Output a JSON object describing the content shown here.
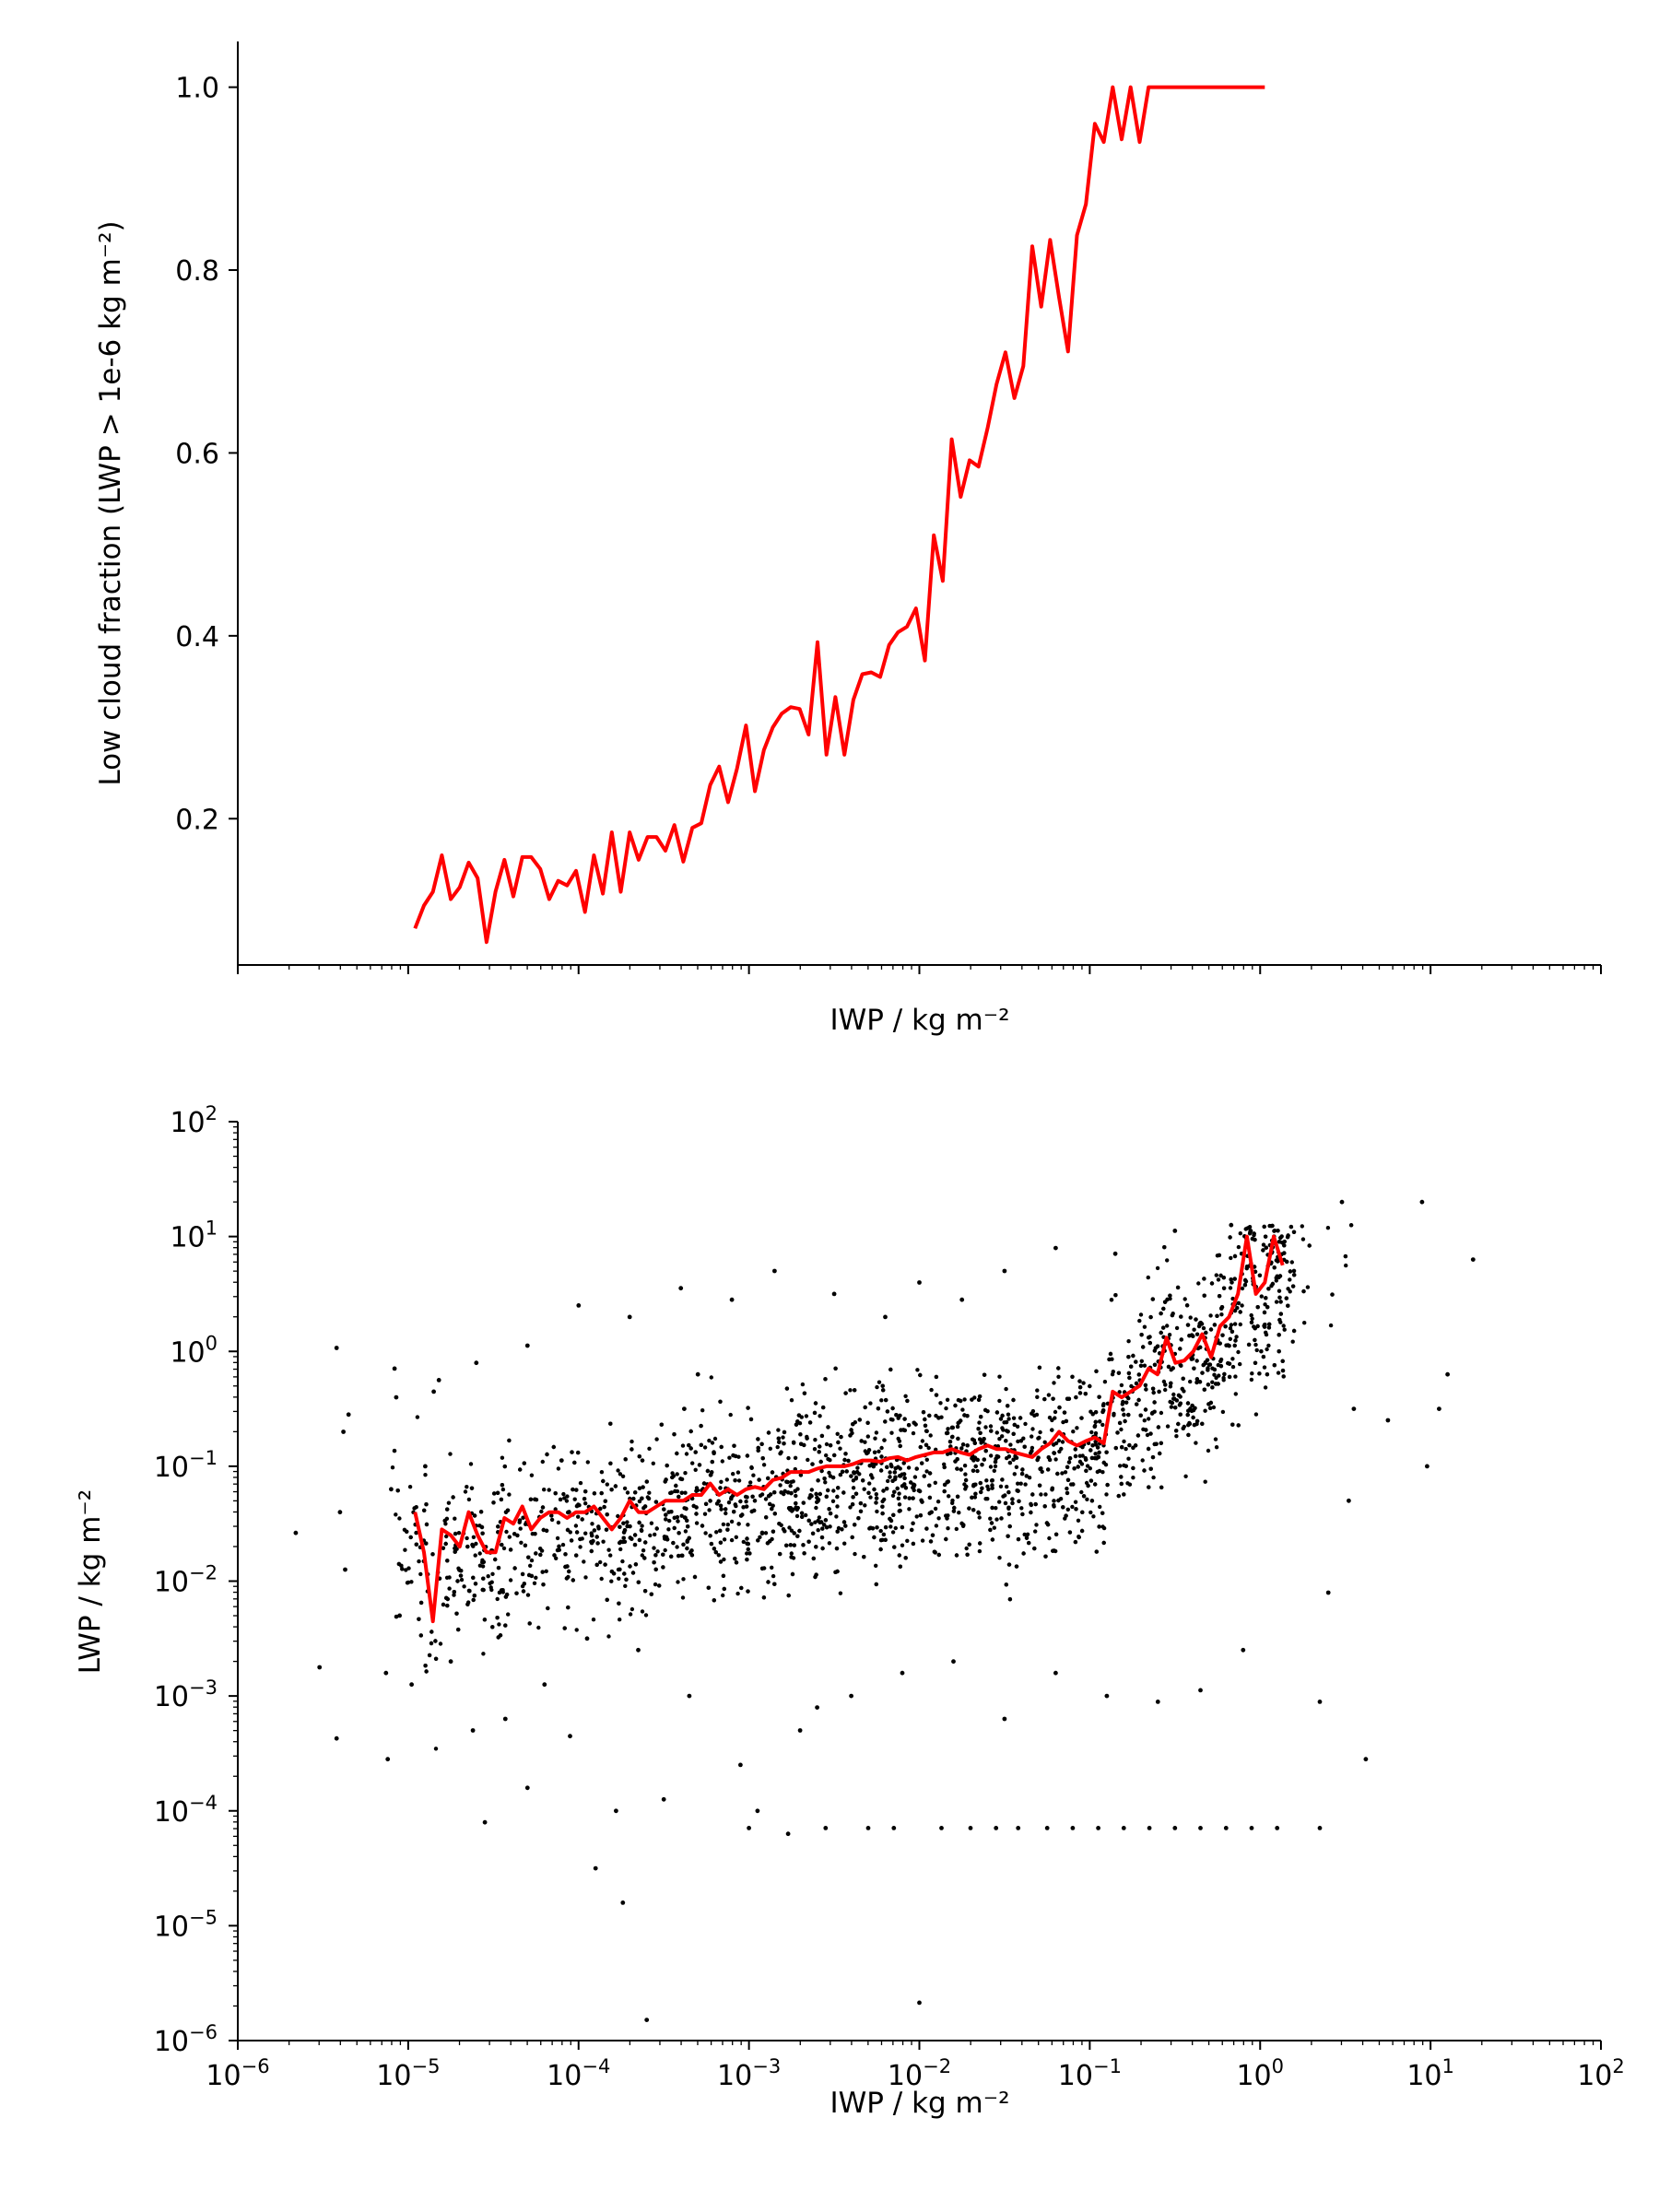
{
  "chart_data": [
    {
      "type": "line",
      "xlabel": "IWP / kg m⁻²",
      "ylabel": "Low cloud fraction (LWP > 1e-6 kg m⁻²)",
      "xscale": "log",
      "xlim": [
        1e-06,
        100
      ],
      "ylim": [
        0.04,
        1.05
      ],
      "x_tick_labels": [],
      "y_ticks": [
        0.2,
        0.4,
        0.6,
        0.8,
        1.0
      ],
      "y_tick_labels": [
        "0.2",
        "0.4",
        "0.6",
        "0.8",
        "1.0"
      ],
      "grid": false,
      "line_color": "#ff0000",
      "log10_x_start": -4.96,
      "log10_x_step": 0.0525,
      "series": [
        {
          "name": "",
          "values": [
            0.08,
            0.105,
            0.12,
            0.16,
            0.112,
            0.125,
            0.152,
            0.135,
            0.065,
            0.12,
            0.155,
            0.115,
            0.158,
            0.158,
            0.145,
            0.112,
            0.132,
            0.127,
            0.143,
            0.098,
            0.16,
            0.118,
            0.185,
            0.12,
            0.185,
            0.155,
            0.18,
            0.18,
            0.165,
            0.193,
            0.153,
            0.19,
            0.195,
            0.237,
            0.257,
            0.218,
            0.255,
            0.302,
            0.23,
            0.275,
            0.3,
            0.315,
            0.322,
            0.32,
            0.292,
            0.393,
            0.27,
            0.333,
            0.27,
            0.33,
            0.358,
            0.36,
            0.355,
            0.39,
            0.404,
            0.41,
            0.43,
            0.373,
            0.51,
            0.46,
            0.615,
            0.552,
            0.592,
            0.585,
            0.627,
            0.675,
            0.71,
            0.66,
            0.695,
            0.826,
            0.76,
            0.833,
            0.77,
            0.711,
            0.838,
            0.872,
            0.96,
            0.94,
            1.0,
            0.943,
            1.0,
            0.94,
            1.0,
            1.0,
            1.0,
            1.0,
            1.0,
            1.0,
            1.0,
            1.0,
            1.0,
            1.0,
            1.0,
            1.0,
            1.0,
            1.0
          ]
        }
      ]
    },
    {
      "type": "scatter",
      "xlabel": "IWP / kg m⁻²",
      "ylabel": "LWP / kg m⁻²",
      "xscale": "log",
      "yscale": "log",
      "xlim": [
        1e-06,
        100
      ],
      "ylim": [
        1e-06,
        100
      ],
      "x_tick_labels": [
        {
          "base": "10",
          "exp": "−6"
        },
        {
          "base": "10",
          "exp": "−5"
        },
        {
          "base": "10",
          "exp": "−4"
        },
        {
          "base": "10",
          "exp": "−3"
        },
        {
          "base": "10",
          "exp": "−2"
        },
        {
          "base": "10",
          "exp": "−1"
        },
        {
          "base": "10",
          "exp": "0"
        },
        {
          "base": "10",
          "exp": "1"
        },
        {
          "base": "10",
          "exp": "2"
        }
      ],
      "y_tick_labels": [
        {
          "base": "10",
          "exp": "−6"
        },
        {
          "base": "10",
          "exp": "−5"
        },
        {
          "base": "10",
          "exp": "−4"
        },
        {
          "base": "10",
          "exp": "−3"
        },
        {
          "base": "10",
          "exp": "−2"
        },
        {
          "base": "10",
          "exp": "−1"
        },
        {
          "base": "10",
          "exp": "0"
        },
        {
          "base": "10",
          "exp": "1"
        },
        {
          "base": "10",
          "exp": "2"
        }
      ],
      "grid": false,
      "point_color": "#000000",
      "line_color": "#ff0000",
      "points_note": "",
      "points": [
        [
          -5.66,
          -1.58
        ],
        [
          -5.52,
          -2.75
        ],
        [
          -5.42,
          -3.37
        ],
        [
          -5.42,
          0.03
        ],
        [
          -5.4,
          -1.4
        ],
        [
          -5.38,
          -0.7
        ],
        [
          -5.35,
          -0.55
        ],
        [
          -5.37,
          -1.9
        ],
        [
          -5.13,
          -2.8
        ],
        [
          -5.12,
          -3.55
        ],
        [
          -5.1,
          -1.2
        ],
        [
          -5.07,
          -0.4
        ],
        [
          -5.05,
          -2.3
        ],
        [
          -4.98,
          -2.9
        ],
        [
          -4.9,
          -1.0
        ],
        [
          -4.82,
          -0.25
        ],
        [
          -4.75,
          -2.7
        ],
        [
          -4.62,
          -3.3
        ],
        [
          -4.55,
          -4.1
        ],
        [
          -4.43,
          -3.2
        ],
        [
          -4.3,
          -3.8
        ],
        [
          -4.2,
          -2.9
        ],
        [
          -4.1,
          -0.95
        ],
        [
          -4.05,
          -3.35
        ],
        [
          -3.9,
          -4.5
        ],
        [
          -3.78,
          -4.0
        ],
        [
          -3.74,
          -4.8
        ],
        [
          -3.6,
          -5.82
        ],
        [
          -3.5,
          -3.9
        ],
        [
          -3.38,
          -0.5
        ],
        [
          -3.3,
          -0.2
        ],
        [
          -3.0,
          -4.15
        ],
        [
          -2.95,
          -4.0
        ],
        [
          -2.77,
          -4.2
        ],
        [
          -2.6,
          -3.1
        ],
        [
          -2.55,
          -4.15
        ],
        [
          -2.3,
          -4.15
        ],
        [
          -2.15,
          -4.15
        ],
        [
          -2.0,
          -5.67
        ],
        [
          -1.87,
          -4.15
        ],
        [
          -1.7,
          -4.15
        ],
        [
          -1.55,
          -4.15
        ],
        [
          -1.42,
          -4.15
        ],
        [
          -1.25,
          -4.15
        ],
        [
          -1.1,
          -4.15
        ],
        [
          -0.95,
          -4.15
        ],
        [
          -0.8,
          -4.15
        ],
        [
          -0.65,
          -4.15
        ],
        [
          -0.5,
          -4.15
        ],
        [
          -0.35,
          -4.15
        ],
        [
          -0.2,
          -4.15
        ],
        [
          -0.05,
          -4.15
        ],
        [
          0.1,
          -4.15
        ],
        [
          0.35,
          -4.15
        ],
        [
          0.62,
          -3.55
        ],
        [
          0.55,
          -0.5
        ],
        [
          0.75,
          -0.6
        ],
        [
          0.98,
          -1.0
        ],
        [
          1.05,
          -0.5
        ],
        [
          1.1,
          -0.2
        ],
        [
          1.25,
          0.8
        ],
        [
          0.95,
          1.3
        ],
        [
          0.48,
          1.3
        ],
        [
          -0.17,
          1.1
        ],
        [
          -0.5,
          1.05
        ],
        [
          -0.85,
          0.85
        ],
        [
          -1.2,
          0.9
        ],
        [
          -1.5,
          0.7
        ],
        [
          -1.75,
          0.45
        ],
        [
          -2.0,
          0.6
        ],
        [
          -2.2,
          0.3
        ],
        [
          -2.5,
          0.5
        ],
        [
          -2.85,
          0.7
        ],
        [
          -3.1,
          0.45
        ],
        [
          -3.4,
          0.55
        ],
        [
          -3.7,
          0.3
        ],
        [
          -4.0,
          0.4
        ],
        [
          -4.3,
          0.05
        ],
        [
          -4.6,
          -0.1
        ],
        [
          -4.85,
          -0.35
        ],
        [
          -5.08,
          -0.15
        ],
        [
          0.52,
          -1.3
        ],
        [
          0.4,
          -2.1
        ],
        [
          0.35,
          -3.05
        ],
        [
          -0.1,
          -2.6
        ],
        [
          -0.35,
          -2.95
        ],
        [
          -0.6,
          -3.05
        ],
        [
          -0.9,
          -3.0
        ],
        [
          -1.2,
          -2.8
        ],
        [
          -1.5,
          -3.2
        ],
        [
          -1.8,
          -2.7
        ],
        [
          -2.1,
          -2.8
        ],
        [
          -2.4,
          -3.0
        ],
        [
          -2.7,
          -3.3
        ],
        [
          -3.05,
          -3.6
        ],
        [
          -3.35,
          -3.0
        ],
        [
          -3.65,
          -2.6
        ],
        [
          -3.95,
          -2.5
        ]
      ],
      "series": [
        {
          "name": "",
          "log10_x_start": -4.96,
          "log10_x_step": 0.0525,
          "log10_values": [
            -1.4,
            -1.75,
            -2.35,
            -1.55,
            -1.6,
            -1.7,
            -1.4,
            -1.6,
            -1.75,
            -1.75,
            -1.45,
            -1.5,
            -1.35,
            -1.55,
            -1.45,
            -1.4,
            -1.4,
            -1.45,
            -1.4,
            -1.4,
            -1.35,
            -1.45,
            -1.55,
            -1.45,
            -1.3,
            -1.4,
            -1.4,
            -1.35,
            -1.3,
            -1.3,
            -1.3,
            -1.25,
            -1.25,
            -1.15,
            -1.25,
            -1.2,
            -1.25,
            -1.2,
            -1.18,
            -1.2,
            -1.12,
            -1.1,
            -1.05,
            -1.05,
            -1.05,
            -1.02,
            -1.0,
            -1.0,
            -1.0,
            -0.98,
            -0.95,
            -0.95,
            -0.96,
            -0.93,
            -0.92,
            -0.95,
            -0.92,
            -0.9,
            -0.88,
            -0.88,
            -0.85,
            -0.88,
            -0.9,
            -0.85,
            -0.82,
            -0.85,
            -0.85,
            -0.88,
            -0.9,
            -0.92,
            -0.85,
            -0.8,
            -0.7,
            -0.78,
            -0.82,
            -0.78,
            -0.75,
            -0.8,
            -0.35,
            -0.4,
            -0.35,
            -0.3,
            -0.15,
            -0.2,
            0.12,
            -0.1,
            -0.08,
            0.0,
            0.15,
            -0.05,
            0.22,
            0.3,
            0.5,
            1.0,
            0.5,
            0.6,
            1.0,
            0.75
          ]
        }
      ]
    }
  ]
}
